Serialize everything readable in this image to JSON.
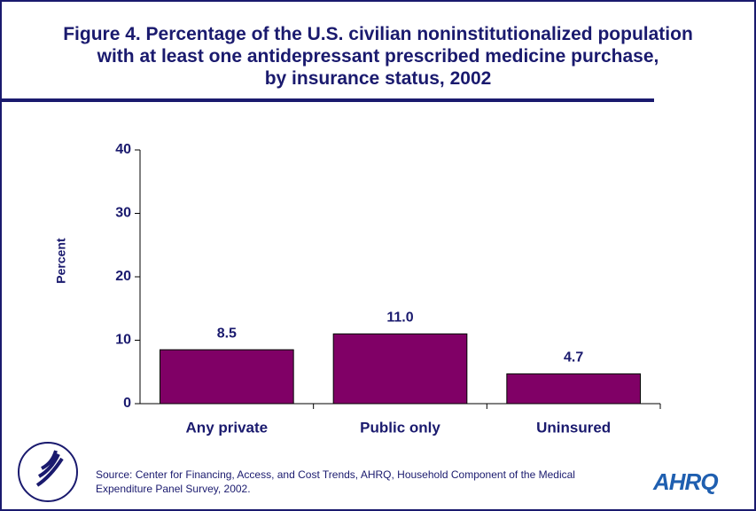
{
  "chart_data": {
    "type": "bar",
    "title": "Figure 4. Percentage of the U.S. civilian noninstitutionalized population\nwith at least one antidepressant prescribed medicine purchase,\nby insurance status, 2002",
    "ylabel": "Percent",
    "categories": [
      "Any private",
      "Public only",
      "Uninsured"
    ],
    "values": [
      8.5,
      11.0,
      4.7
    ],
    "value_labels": [
      "8.5",
      "11.0",
      "4.7"
    ],
    "color": "#800066",
    "ylim": [
      0,
      40
    ],
    "yticks": [
      0,
      10,
      20,
      30,
      40
    ],
    "grid": false,
    "source": "Source: Center for Financing, Access, and Cost Trends, AHRQ, Household Component of the Medical\nExpenditure Panel Survey, 2002.",
    "logo": "AHRQ"
  }
}
